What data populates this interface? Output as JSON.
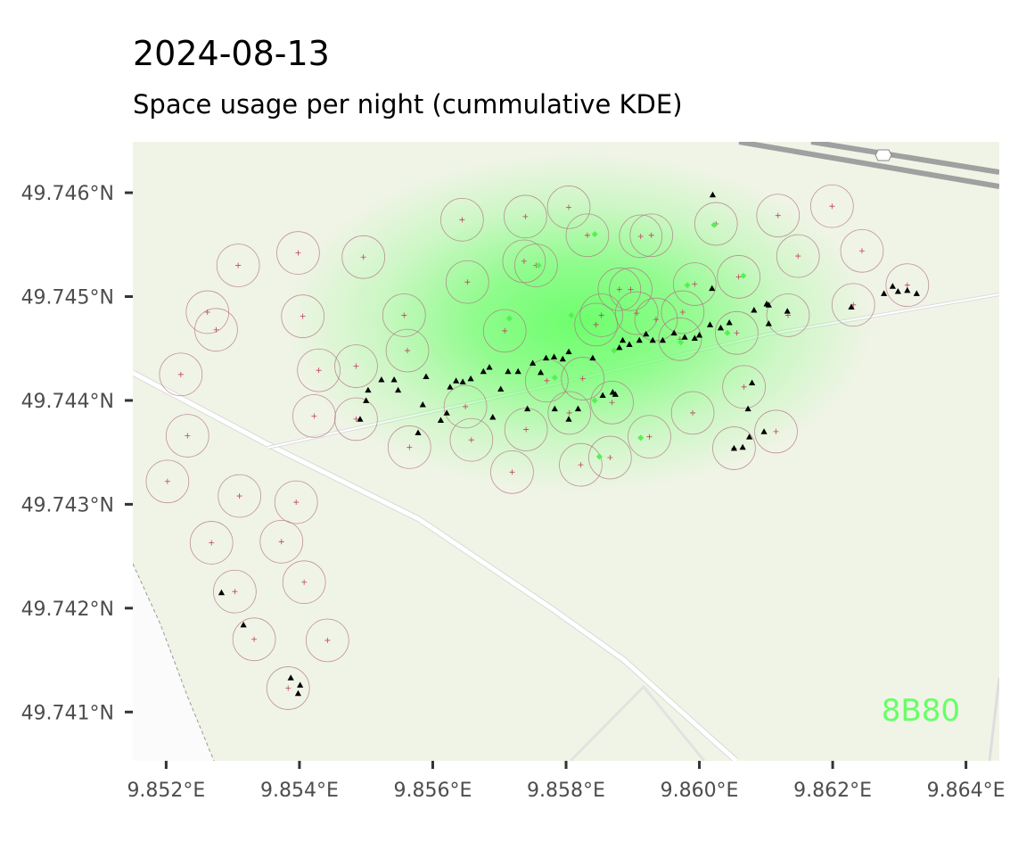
{
  "title": "2024-08-13",
  "subtitle": "Space usage per night (cummulative KDE)",
  "plot_label": "8B80",
  "colors": {
    "background": "#f0f4e6",
    "kde": "#66ff66",
    "circle_stroke": "#b06f80",
    "trap_cross": "#c04060",
    "active_trap": "#55f055",
    "detection": "#000000",
    "road": "#ffffff",
    "highway": "#9a9a9a"
  },
  "chart_data": {
    "type": "scatter",
    "x_ticks": [
      {
        "value": 9.852,
        "label": "9.852°E"
      },
      {
        "value": 9.854,
        "label": "9.854°E"
      },
      {
        "value": 9.856,
        "label": "9.856°E"
      },
      {
        "value": 9.858,
        "label": "9.858°E"
      },
      {
        "value": 9.86,
        "label": "9.860°E"
      },
      {
        "value": 9.862,
        "label": "9.862°E"
      },
      {
        "value": 9.864,
        "label": "9.864°E"
      }
    ],
    "y_ticks": [
      {
        "value": 49.741,
        "label": "49.741°N"
      },
      {
        "value": 49.742,
        "label": "49.742°N"
      },
      {
        "value": 49.743,
        "label": "49.743°N"
      },
      {
        "value": 49.744,
        "label": "49.744°N"
      },
      {
        "value": 49.745,
        "label": "49.745°N"
      },
      {
        "value": 49.746,
        "label": "49.746°N"
      }
    ],
    "xlim": [
      9.8515,
      9.8645
    ],
    "ylim": [
      49.74053,
      49.74649
    ],
    "kde_peak": {
      "x": 9.8582,
      "y": 49.74475
    },
    "traps": [
      [
        9.85202,
        49.74322
      ],
      [
        9.85268,
        49.74263
      ],
      [
        9.85303,
        49.74216
      ],
      [
        9.85332,
        49.7417
      ],
      [
        9.85383,
        49.74123
      ],
      [
        9.85407,
        49.74225
      ],
      [
        9.85442,
        49.74169
      ],
      [
        9.85373,
        49.74264
      ],
      [
        9.85395,
        49.74302
      ],
      [
        9.8531,
        49.74308
      ],
      [
        9.85222,
        49.74425
      ],
      [
        9.85232,
        49.74366
      ],
      [
        9.85262,
        49.74485
      ],
      [
        9.85275,
        49.74468
      ],
      [
        9.85308,
        49.7453
      ],
      [
        9.85398,
        49.74542
      ],
      [
        9.85429,
        49.74429
      ],
      [
        9.85405,
        49.74481
      ],
      [
        9.85485,
        49.74433
      ],
      [
        9.85496,
        49.74538
      ],
      [
        9.85422,
        49.74385
      ],
      [
        9.85485,
        49.74382
      ],
      [
        9.85562,
        49.74448
      ],
      [
        9.85557,
        49.74482
      ],
      [
        9.85644,
        49.74574
      ],
      [
        9.85652,
        49.74514
      ],
      [
        9.85708,
        49.74467
      ],
      [
        9.85739,
        49.74577
      ],
      [
        9.85737,
        49.74534
      ],
      [
        9.85565,
        49.74355
      ],
      [
        9.85658,
        49.74362
      ],
      [
        9.85649,
        49.74394
      ],
      [
        9.85719,
        49.74331
      ],
      [
        9.8574,
        49.74372
      ],
      [
        9.85822,
        49.74338
      ],
      [
        9.85771,
        49.74419
      ],
      [
        9.85805,
        49.74388
      ],
      [
        9.85866,
        49.74345
      ],
      [
        9.85869,
        49.74398
      ],
      [
        9.85825,
        49.74421
      ],
      [
        9.85845,
        49.74473
      ],
      [
        9.85925,
        49.74365
      ],
      [
        9.85906,
        49.74484
      ],
      [
        9.8588,
        49.74507
      ],
      [
        9.85971,
        49.74459
      ],
      [
        9.85993,
        49.74512
      ],
      [
        9.8599,
        49.74388
      ],
      [
        9.85912,
        49.74558
      ],
      [
        9.85853,
        49.74482
      ],
      [
        9.85804,
        49.74586
      ],
      [
        9.85755,
        49.7453
      ],
      [
        9.85832,
        49.74559
      ],
      [
        9.85928,
        49.74559
      ],
      [
        9.86025,
        49.7457
      ],
      [
        9.86059,
        49.74519
      ],
      [
        9.86056,
        49.74465
      ],
      [
        9.86067,
        49.74413
      ],
      [
        9.86052,
        49.74354
      ],
      [
        9.86115,
        49.7437
      ],
      [
        9.86133,
        49.74482
      ],
      [
        9.86148,
        49.74539
      ],
      [
        9.86118,
        49.74578
      ],
      [
        9.86199,
        49.74587
      ],
      [
        9.86244,
        49.74544
      ],
      [
        9.86231,
        49.74492
      ],
      [
        9.86312,
        49.74511
      ],
      [
        9.85975,
        49.74485
      ],
      [
        9.85897,
        49.74507
      ],
      [
        9.85935,
        49.74478
      ]
    ],
    "circle_radius_deg": 0.00032,
    "active_traps": [
      [
        9.85843,
        49.7456
      ],
      [
        9.85759,
        49.7453
      ],
      [
        9.85715,
        49.74479
      ],
      [
        9.85808,
        49.74482
      ],
      [
        9.86022,
        49.74569
      ],
      [
        9.85982,
        49.74511
      ],
      [
        9.86066,
        49.7452
      ],
      [
        9.86042,
        49.74465
      ],
      [
        9.85783,
        49.74422
      ],
      [
        9.85843,
        49.744
      ],
      [
        9.8585,
        49.74346
      ],
      [
        9.85912,
        49.74364
      ],
      [
        9.85972,
        49.74456
      ],
      [
        9.85872,
        49.74448
      ]
    ],
    "detections": [
      [
        9.85283,
        49.74215
      ],
      [
        9.85316,
        49.74184
      ],
      [
        9.85387,
        49.74133
      ],
      [
        9.85401,
        49.74126
      ],
      [
        9.85398,
        49.74118
      ],
      [
        9.85491,
        49.74382
      ],
      [
        9.855,
        49.744
      ],
      [
        9.85503,
        49.7441
      ],
      [
        9.85523,
        49.7442
      ],
      [
        9.85542,
        49.7442
      ],
      [
        9.85548,
        49.7441
      ],
      [
        9.85578,
        49.74369
      ],
      [
        9.85585,
        49.74396
      ],
      [
        9.8559,
        49.74423
      ],
      [
        9.85612,
        49.74381
      ],
      [
        9.85621,
        49.74388
      ],
      [
        9.85626,
        49.74413
      ],
      [
        9.85635,
        49.74419
      ],
      [
        9.85645,
        49.74418
      ],
      [
        9.85657,
        49.74421
      ],
      [
        9.85676,
        49.74428
      ],
      [
        9.85685,
        49.74432
      ],
      [
        9.8569,
        49.74384
      ],
      [
        9.85702,
        49.74411
      ],
      [
        9.85713,
        49.74428
      ],
      [
        9.85728,
        49.74428
      ],
      [
        9.85742,
        49.74392
      ],
      [
        9.8575,
        49.74436
      ],
      [
        9.85762,
        49.74427
      ],
      [
        9.8577,
        49.74441
      ],
      [
        9.85782,
        49.74442
      ],
      [
        9.85783,
        49.74392
      ],
      [
        9.85795,
        49.7444
      ],
      [
        9.85804,
        49.74447
      ],
      [
        9.85818,
        49.74392
      ],
      [
        9.8584,
        49.74441
      ],
      [
        9.85855,
        49.74405
      ],
      [
        9.8587,
        49.74408
      ],
      [
        9.8588,
        49.74451
      ],
      [
        9.85885,
        49.74458
      ],
      [
        9.85895,
        49.74454
      ],
      [
        9.8591,
        49.74458
      ],
      [
        9.8592,
        49.74464
      ],
      [
        9.8593,
        49.74458
      ],
      [
        9.85945,
        49.74458
      ],
      [
        9.85962,
        49.74465
      ],
      [
        9.85978,
        49.74461
      ],
      [
        9.85993,
        49.7446
      ],
      [
        9.86,
        49.74463
      ],
      [
        9.86016,
        49.74473
      ],
      [
        9.8602,
        49.74598
      ],
      [
        9.86019,
        49.74508
      ],
      [
        9.86032,
        49.7447
      ],
      [
        9.86045,
        49.74475
      ],
      [
        9.86052,
        49.74354
      ],
      [
        9.86065,
        49.74355
      ],
      [
        9.86075,
        49.74365
      ],
      [
        9.86073,
        49.74392
      ],
      [
        9.86079,
        49.74417
      ],
      [
        9.86082,
        49.74487
      ],
      [
        9.86097,
        49.7437
      ],
      [
        9.86101,
        49.74493
      ],
      [
        9.86104,
        49.74474
      ],
      [
        9.86104,
        49.74492
      ],
      [
        9.86132,
        49.74486
      ],
      [
        9.86228,
        49.7449
      ],
      [
        9.86277,
        49.74503
      ],
      [
        9.8629,
        49.7451
      ],
      [
        9.86298,
        49.74505
      ],
      [
        9.86312,
        49.74506
      ],
      [
        9.86326,
        49.74503
      ],
      [
        9.85874,
        49.74406
      ],
      [
        9.85804,
        49.74382
      ]
    ]
  }
}
